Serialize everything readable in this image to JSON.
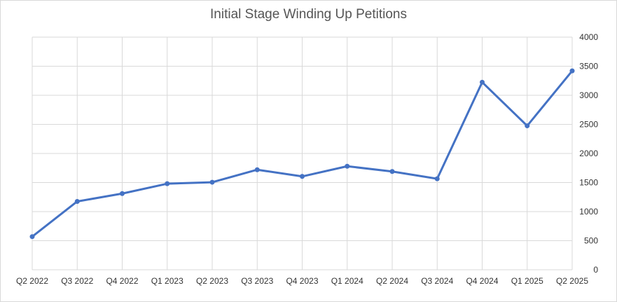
{
  "chart_data": {
    "type": "line",
    "title": "Initial Stage Winding Up Petitions",
    "xlabel": "",
    "ylabel": "",
    "categories": [
      "Q2 2022",
      "Q3 2022",
      "Q4 2022",
      "Q1 2023",
      "Q2 2023",
      "Q3 2023",
      "Q4 2023",
      "Q1 2024",
      "Q2 2024",
      "Q3 2024",
      "Q4 2024",
      "Q1 2025",
      "Q2 2025"
    ],
    "series": [
      {
        "values": [
          570,
          1175,
          1310,
          1480,
          1505,
          1720,
          1605,
          1780,
          1690,
          1565,
          3225,
          2475,
          3420
        ]
      }
    ],
    "ylim": [
      0,
      4000
    ],
    "yticks": [
      0,
      500,
      1000,
      1500,
      2000,
      2500,
      3000,
      3500,
      4000
    ],
    "y_axis_side": "right",
    "grid": true,
    "legend": "none",
    "colors": {
      "line": "#4472c4",
      "grid": "#d9d9d9",
      "text": "#333333",
      "title": "#555555"
    }
  }
}
